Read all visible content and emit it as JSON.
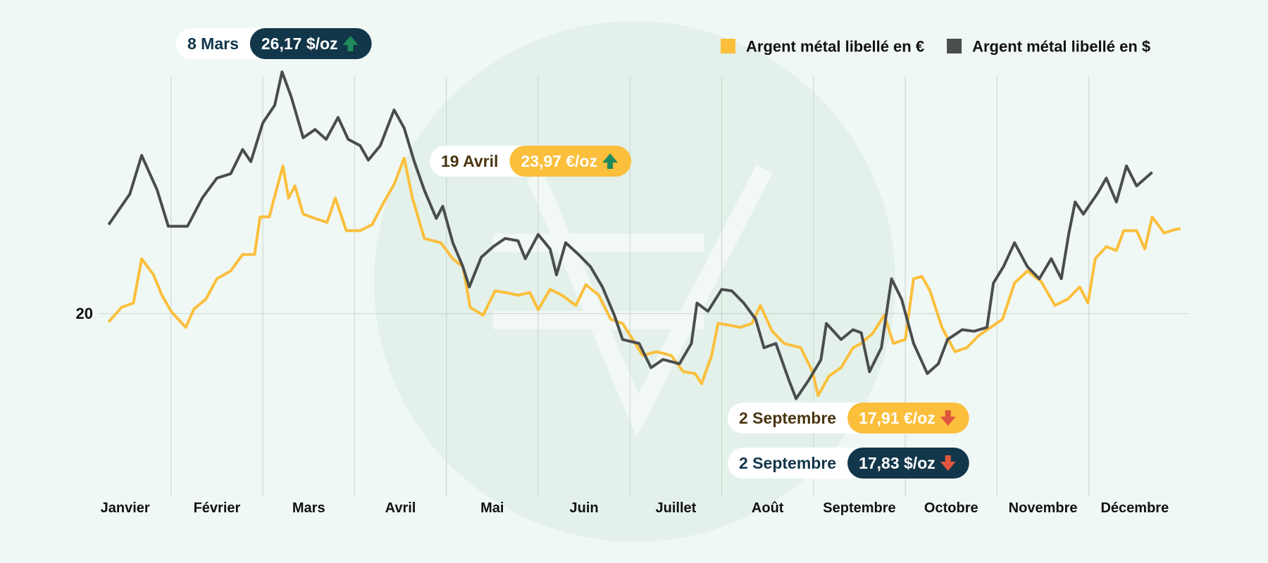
{
  "chart_data": {
    "type": "line",
    "categories": [
      "Janvier",
      "Février",
      "Mars",
      "Avril",
      "Mai",
      "Juin",
      "Juillet",
      "Août",
      "Septembre",
      "Octobre",
      "Novembre",
      "Décembre"
    ],
    "xlim": [
      0,
      12
    ],
    "ylim": [
      15,
      27
    ],
    "yticks": [
      20
    ],
    "grid": true,
    "legend": "top-right",
    "arrow_colors": {
      "up": "#1f8a5b",
      "down": "#e0553e"
    },
    "series": [
      {
        "name": "Argent métal libellé en €",
        "color": "#fbbf3c",
        "x": [
          0.32,
          0.46,
          0.59,
          0.68,
          0.81,
          0.9,
          1.0,
          1.16,
          1.25,
          1.38,
          1.5,
          1.65,
          1.78,
          1.91,
          1.97,
          2.07,
          2.16,
          2.22,
          2.28,
          2.35,
          2.44,
          2.57,
          2.7,
          2.79,
          2.91,
          3.06,
          3.19,
          3.32,
          3.43,
          3.54,
          3.63,
          3.76,
          3.94,
          4.07,
          4.18,
          4.26,
          4.4,
          4.53,
          4.64,
          4.78,
          4.91,
          5.0,
          5.13,
          5.26,
          5.41,
          5.52,
          5.66,
          5.79,
          5.92,
          6.14,
          6.29,
          6.45,
          6.58,
          6.71,
          6.78,
          6.89,
          6.96,
          7.07,
          7.2,
          7.33,
          7.42,
          7.55,
          7.68,
          7.86,
          7.99,
          8.05,
          8.17,
          8.3,
          8.43,
          8.52,
          8.65,
          8.77,
          8.87,
          9.0,
          9.09,
          9.18,
          9.27,
          9.4,
          9.54,
          9.67,
          9.8,
          9.93,
          10.06,
          10.19,
          10.33,
          10.48,
          10.63,
          10.77,
          10.9,
          10.99,
          11.07,
          11.19,
          11.3,
          11.38,
          11.52,
          11.61,
          11.69,
          11.82,
          11.96,
          12
        ],
        "values": [
          19.79,
          20.16,
          20.27,
          21.4,
          20.99,
          20.47,
          20.06,
          19.65,
          20.12,
          20.37,
          20.89,
          21.09,
          21.51,
          21.51,
          22.47,
          22.47,
          23.26,
          23.77,
          22.95,
          23.26,
          22.54,
          22.43,
          22.33,
          22.95,
          22.12,
          22.12,
          22.27,
          22.85,
          23.3,
          23.97,
          22.95,
          21.92,
          21.81,
          21.4,
          21.2,
          20.16,
          19.96,
          20.58,
          20.54,
          20.47,
          20.54,
          20.1,
          20.62,
          20.47,
          20.21,
          20.74,
          20.47,
          19.86,
          19.75,
          18.93,
          19.03,
          18.93,
          18.52,
          18.47,
          18.21,
          18.93,
          19.75,
          19.71,
          19.65,
          19.75,
          20.21,
          19.55,
          19.24,
          19.13,
          18.52,
          17.91,
          18.41,
          18.62,
          19.13,
          19.24,
          19.51,
          19.96,
          19.24,
          19.34,
          20.89,
          20.95,
          20.58,
          19.65,
          19.03,
          19.13,
          19.44,
          19.65,
          19.86,
          20.78,
          21.09,
          20.82,
          20.21,
          20.37,
          20.68,
          20.27,
          21.4,
          21.71,
          21.61,
          22.12,
          22.12,
          21.65,
          22.47,
          22.06,
          22.16,
          22.16
        ]
      },
      {
        "name": "Argent métal libellé en $",
        "color": "#4a4d4e",
        "x": [
          0.32,
          0.55,
          0.68,
          0.85,
          0.97,
          1.18,
          1.34,
          1.5,
          1.65,
          1.78,
          1.87,
          2.0,
          2.13,
          2.21,
          2.31,
          2.44,
          2.57,
          2.69,
          2.82,
          2.93,
          3.06,
          3.15,
          3.28,
          3.43,
          3.54,
          3.65,
          3.76,
          3.89,
          3.96,
          4.07,
          4.18,
          4.25,
          4.38,
          4.51,
          4.64,
          4.78,
          4.86,
          5.0,
          5.13,
          5.2,
          5.3,
          5.44,
          5.57,
          5.7,
          5.83,
          5.92,
          6.1,
          6.23,
          6.36,
          6.54,
          6.67,
          6.73,
          6.85,
          7.0,
          7.11,
          7.24,
          7.37,
          7.46,
          7.59,
          7.73,
          7.81,
          7.95,
          8.08,
          8.14,
          8.3,
          8.43,
          8.52,
          8.61,
          8.74,
          8.85,
          8.96,
          9.09,
          9.24,
          9.36,
          9.46,
          9.62,
          9.75,
          9.89,
          9.96,
          10.07,
          10.19,
          10.33,
          10.46,
          10.59,
          10.7,
          10.78,
          10.85,
          10.94,
          11.1,
          11.19,
          11.3,
          11.41,
          11.52,
          11.69
        ],
        "values": [
          22.27,
          23.05,
          24.04,
          23.15,
          22.23,
          22.23,
          22.95,
          23.46,
          23.57,
          24.19,
          23.88,
          24.87,
          25.32,
          26.17,
          25.53,
          24.49,
          24.7,
          24.45,
          25.01,
          24.45,
          24.29,
          23.92,
          24.29,
          25.2,
          24.74,
          23.88,
          23.15,
          22.43,
          22.74,
          21.81,
          21.2,
          20.68,
          21.44,
          21.71,
          21.92,
          21.86,
          21.4,
          22.02,
          21.65,
          20.99,
          21.81,
          21.51,
          21.2,
          20.68,
          19.96,
          19.34,
          19.24,
          18.62,
          18.83,
          18.72,
          19.24,
          20.27,
          20.06,
          20.62,
          20.58,
          20.27,
          19.86,
          19.13,
          19.24,
          18.31,
          17.83,
          18.31,
          18.82,
          19.75,
          19.34,
          19.59,
          19.51,
          18.52,
          19.13,
          20.89,
          20.37,
          19.24,
          18.47,
          18.72,
          19.34,
          19.59,
          19.55,
          19.65,
          20.78,
          21.2,
          21.81,
          21.2,
          20.89,
          21.4,
          20.89,
          22.02,
          22.85,
          22.54,
          23.09,
          23.46,
          22.85,
          23.77,
          23.26,
          23.61
        ]
      }
    ],
    "annotations": [
      {
        "date": "8 Mars",
        "label": "26,17 $/oz",
        "value": 26.17,
        "color": "#12364a",
        "text_color": "#12364a"
      },
      {
        "date": "19 Avril",
        "label": "23,97 €/oz",
        "value": 23.97,
        "color": "#fbbf3c",
        "text_color": "#4a3510"
      },
      {
        "date": "2 Septembre",
        "label": "17,91 €/oz",
        "value": 17.91,
        "color": "#fbbf3c",
        "text_color": "#4a3510"
      },
      {
        "date": "2 Septembre",
        "label": "17,83 $/oz",
        "value": 17.83,
        "color": "#12364a",
        "text_color": "#12364a"
      }
    ]
  }
}
